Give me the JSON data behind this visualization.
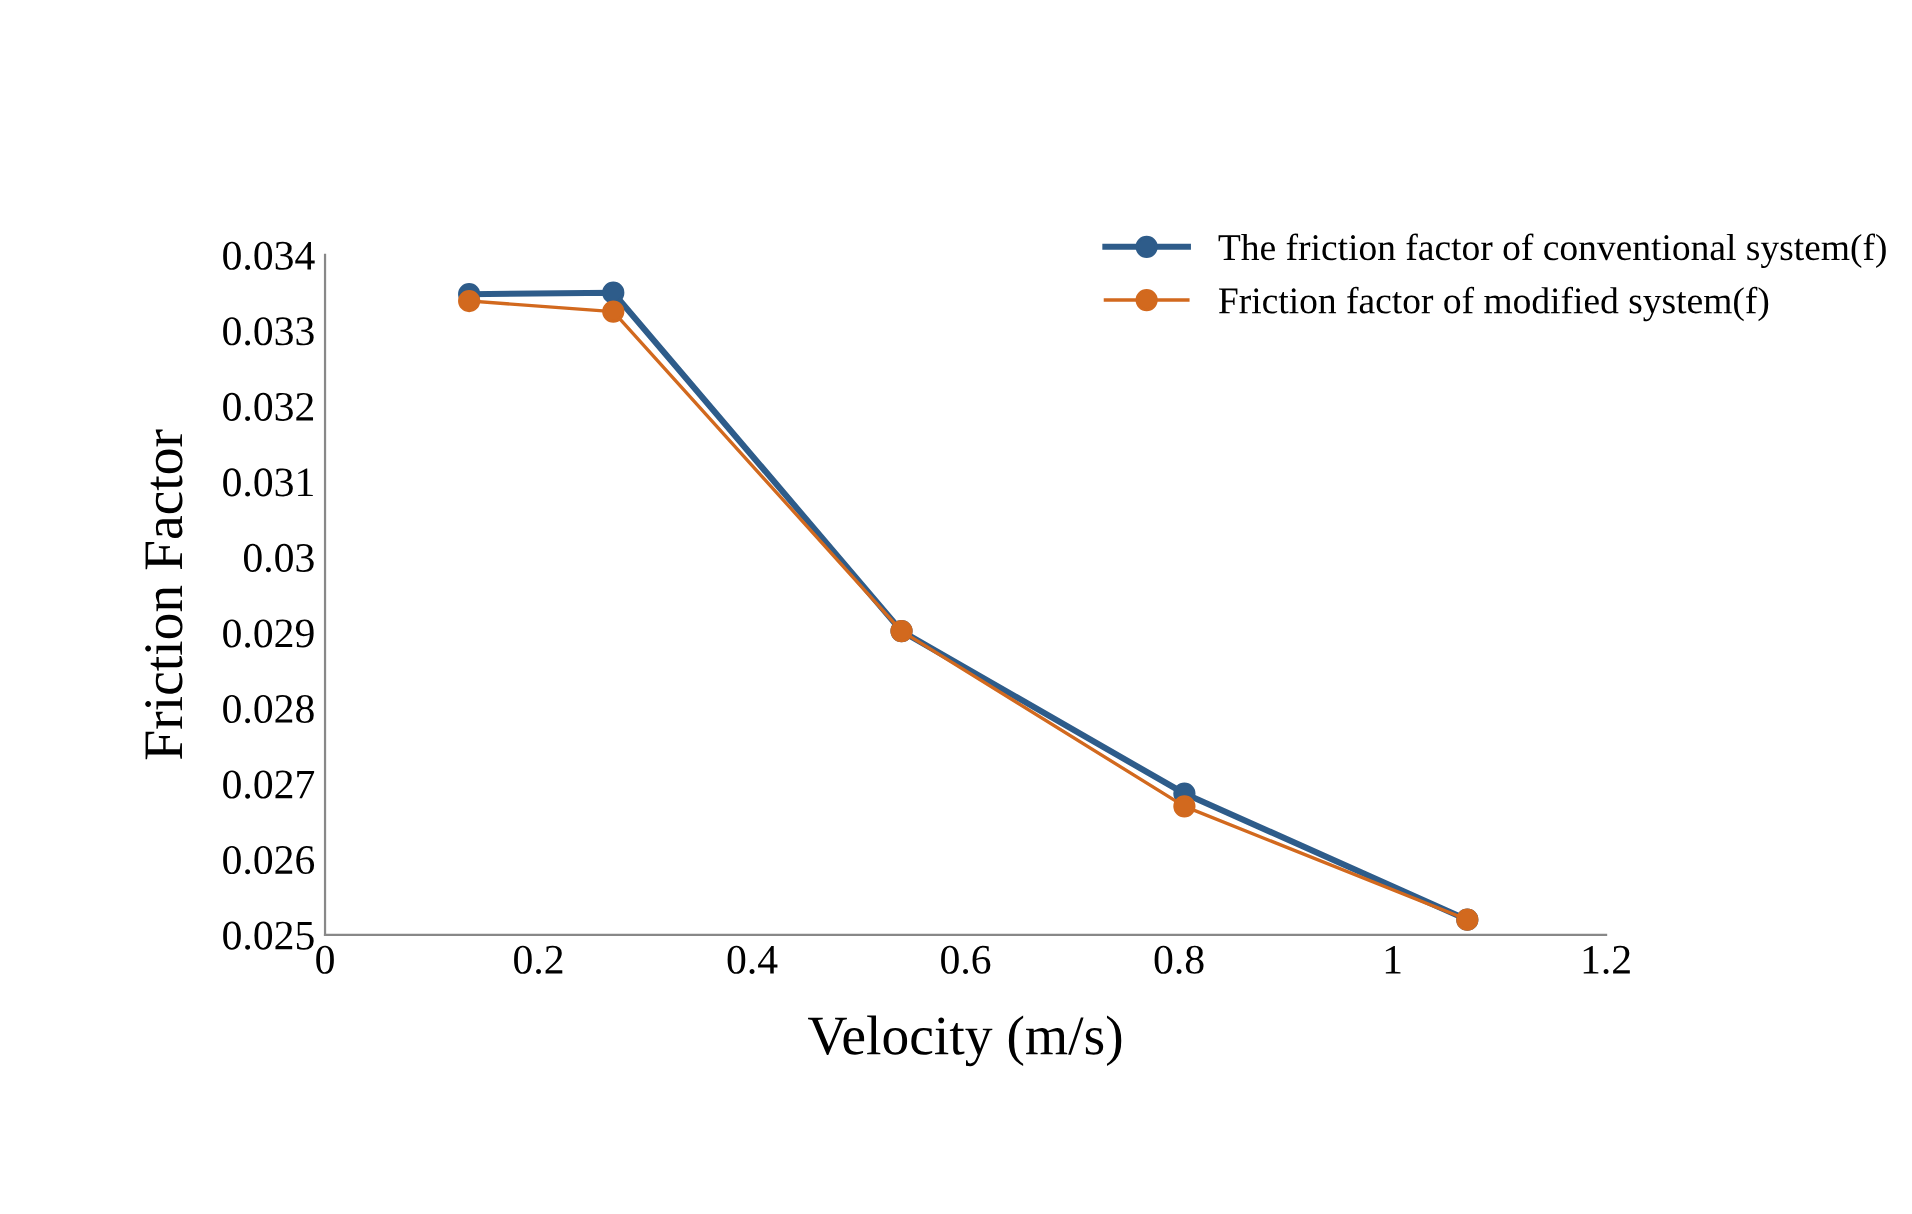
{
  "chart_data": {
    "type": "line",
    "xlabel": "Velocity (m/s)",
    "ylabel": "Friction Factor",
    "x": [
      0.135,
      0.27,
      0.54,
      0.805,
      1.07
    ],
    "series": [
      {
        "name": "The friction factor of conventional system(f)",
        "color": "#2e5c8a",
        "values": [
          0.03348,
          0.0335,
          0.02902,
          0.02687,
          0.0252
        ]
      },
      {
        "name": "Friction factor of modified system(f)",
        "color": "#d2691e",
        "values": [
          0.03339,
          0.03325,
          0.02902,
          0.0267,
          0.0252
        ]
      }
    ],
    "xlim": [
      0,
      1.2
    ],
    "xticks": [
      0,
      0.2,
      0.4,
      0.6,
      0.8,
      1,
      1.2
    ],
    "ylim": [
      0.025,
      0.034
    ],
    "yticks": [
      0.025,
      0.026,
      0.027,
      0.028,
      0.029,
      0.03,
      0.031,
      0.032,
      0.033,
      0.034
    ],
    "marker": "circle",
    "grid": false,
    "legend": "top right"
  }
}
